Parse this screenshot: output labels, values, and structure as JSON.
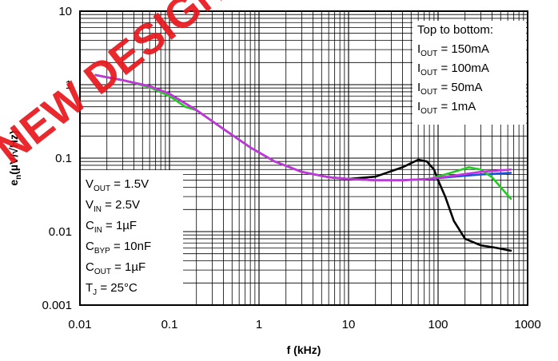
{
  "watermark": {
    "text": "NEW DESIGN",
    "color": "#e8171c"
  },
  "chart_data": {
    "type": "line",
    "xlabel": "f (kHz)",
    "ylabel_main": "e",
    "ylabel_sub": "n",
    "ylabel_units": "(µV/√Hz)",
    "xscale": "log",
    "yscale": "log",
    "xlim": [
      0.01,
      1000
    ],
    "ylim": [
      0.001,
      10
    ],
    "x_ticks": [
      "0.01",
      "0.1",
      "1",
      "10",
      "100",
      "1000"
    ],
    "y_ticks": [
      "0.001",
      "0.01",
      "0.1",
      "1",
      "10"
    ],
    "grid": true,
    "legend_box": {
      "title": "Top to bottom:",
      "lines": [
        {
          "main": "I",
          "sub": "OUT",
          "rest": " = 150mA"
        },
        {
          "main": "I",
          "sub": "OUT",
          "rest": " = 100mA"
        },
        {
          "main": "I",
          "sub": "OUT",
          "rest": " = 50mA"
        },
        {
          "main": "I",
          "sub": "OUT",
          "rest": " = 1mA"
        }
      ],
      "placement": "top-right"
    },
    "conditions_box": {
      "lines": [
        {
          "main": "V",
          "sub": "OUT",
          "rest": " = 1.5V"
        },
        {
          "main": "V",
          "sub": "IN",
          "rest": " = 2.5V"
        },
        {
          "main": "C",
          "sub": "IN",
          "rest": " = 1µF"
        },
        {
          "main": "C",
          "sub": "BYP",
          "rest": " = 10nF"
        },
        {
          "main": "C",
          "sub": "OUT",
          "rest": " = 1µF"
        },
        {
          "main": "T",
          "sub": "J",
          "rest": " = 25°C"
        }
      ],
      "placement": "bottom-left"
    },
    "series": [
      {
        "color": "#1a53d6",
        "x": [
          0.015,
          0.03,
          0.06,
          0.1,
          0.2,
          0.4,
          0.8,
          1.5,
          3,
          6,
          10,
          20,
          40,
          80,
          150,
          300,
          650
        ],
        "y": [
          1.35,
          1.15,
          0.95,
          0.75,
          0.45,
          0.25,
          0.14,
          0.09,
          0.065,
          0.055,
          0.052,
          0.05,
          0.05,
          0.052,
          0.056,
          0.06,
          0.063
        ]
      },
      {
        "color": "#000000",
        "x": [
          0.015,
          0.03,
          0.06,
          0.1,
          0.2,
          0.4,
          0.8,
          1.5,
          3,
          6,
          10,
          20,
          40,
          60,
          75,
          90,
          100,
          120,
          150,
          200,
          300,
          450,
          650
        ],
        "y": [
          1.35,
          1.15,
          0.95,
          0.75,
          0.45,
          0.25,
          0.14,
          0.09,
          0.065,
          0.055,
          0.052,
          0.056,
          0.075,
          0.095,
          0.09,
          0.07,
          0.05,
          0.03,
          0.014,
          0.008,
          0.0065,
          0.006,
          0.0055
        ]
      },
      {
        "color": "#22cc22",
        "x": [
          0.015,
          0.03,
          0.06,
          0.1,
          0.15,
          0.2,
          0.4,
          0.8,
          1.5,
          3,
          6,
          10,
          20,
          40,
          80,
          150,
          220,
          300,
          400,
          650
        ],
        "y": [
          1.35,
          1.15,
          0.92,
          0.7,
          0.5,
          0.45,
          0.25,
          0.14,
          0.09,
          0.065,
          0.055,
          0.052,
          0.05,
          0.05,
          0.052,
          0.065,
          0.075,
          0.07,
          0.055,
          0.028
        ]
      },
      {
        "color": "#c832e0",
        "x": [
          0.015,
          0.03,
          0.06,
          0.1,
          0.2,
          0.4,
          0.8,
          1.5,
          3,
          6,
          10,
          20,
          40,
          80,
          150,
          300,
          650
        ],
        "y": [
          1.35,
          1.15,
          0.95,
          0.75,
          0.45,
          0.25,
          0.14,
          0.09,
          0.065,
          0.055,
          0.052,
          0.05,
          0.05,
          0.052,
          0.058,
          0.065,
          0.07
        ]
      }
    ]
  }
}
